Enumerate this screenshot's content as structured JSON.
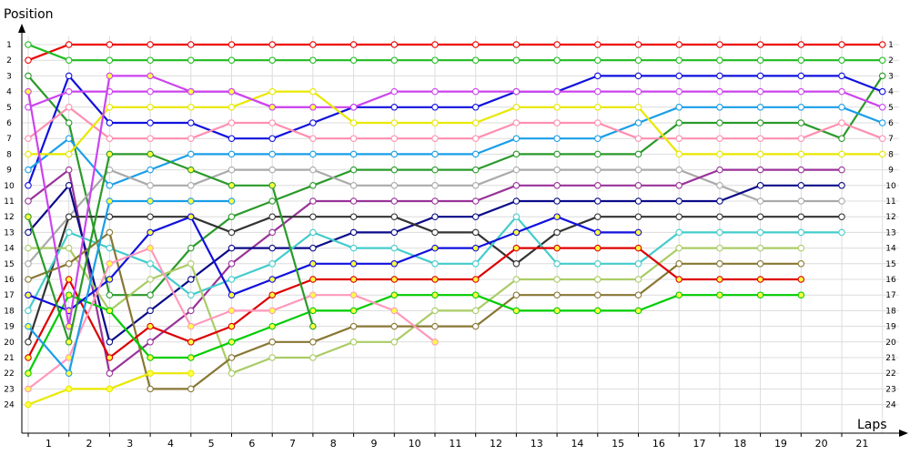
{
  "chart_data": {
    "type": "line",
    "title": "",
    "xlabel": "Laps",
    "ylabel": "Position",
    "x": [
      0,
      1,
      2,
      3,
      4,
      5,
      6,
      7,
      8,
      9,
      10,
      11,
      12,
      13,
      14,
      15,
      16,
      17,
      18,
      19,
      20,
      21
    ],
    "x_tick_labels": [
      "1",
      "2",
      "3",
      "4",
      "5",
      "6",
      "7",
      "8",
      "9",
      "10",
      "11",
      "12",
      "13",
      "14",
      "15",
      "16",
      "17",
      "18",
      "19",
      "20",
      "21"
    ],
    "y_ticks": [
      1,
      2,
      3,
      4,
      5,
      6,
      7,
      8,
      9,
      10,
      11,
      12,
      13,
      14,
      15,
      16,
      17,
      18,
      19,
      20,
      21,
      22,
      23,
      24
    ],
    "ylim": [
      1,
      24
    ],
    "y_inverted": true,
    "grid": true,
    "series": [
      {
        "color": "#ee0000",
        "marker": "#ffffff",
        "values": [
          2,
          1,
          1,
          1,
          1,
          1,
          1,
          1,
          1,
          1,
          1,
          1,
          1,
          1,
          1,
          1,
          1,
          1,
          1,
          1,
          1,
          1
        ]
      },
      {
        "color": "#22bb22",
        "marker": "#ffffff",
        "values": [
          1,
          2,
          2,
          2,
          2,
          2,
          2,
          2,
          2,
          2,
          2,
          2,
          2,
          2,
          2,
          2,
          2,
          2,
          2,
          2,
          2,
          2
        ]
      },
      {
        "color": "#2a9a2a",
        "marker": "#ffffff",
        "values": [
          3,
          6,
          17,
          17,
          14,
          12,
          11,
          10,
          9,
          9,
          9,
          9,
          8,
          8,
          8,
          8,
          6,
          6,
          6,
          6,
          7,
          3
        ]
      },
      {
        "color": "#1111dd",
        "marker": "#ffffff",
        "values": [
          10,
          3,
          6,
          6,
          6,
          7,
          7,
          6,
          5,
          5,
          5,
          5,
          4,
          4,
          3,
          3,
          3,
          3,
          3,
          3,
          3,
          4
        ]
      },
      {
        "color": "#cc44ee",
        "marker": "#ffffff",
        "values": [
          5,
          4,
          4,
          4,
          4,
          4,
          5,
          5,
          5,
          4,
          4,
          4,
          4,
          4,
          4,
          4,
          4,
          4,
          4,
          4,
          4,
          5
        ]
      },
      {
        "color": "#1a9ee8",
        "marker": "#ffffff",
        "values": [
          9,
          7,
          10,
          9,
          8,
          8,
          8,
          8,
          8,
          8,
          8,
          8,
          7,
          7,
          7,
          6,
          5,
          5,
          5,
          5,
          5,
          6
        ]
      },
      {
        "color": "#ff8fb0",
        "marker": "#ffffff",
        "values": [
          7,
          5,
          7,
          7,
          7,
          6,
          6,
          7,
          7,
          7,
          7,
          7,
          6,
          6,
          6,
          7,
          7,
          7,
          7,
          7,
          6,
          7
        ]
      },
      {
        "color": "#e8e800",
        "marker": "#ffffff",
        "values": [
          8,
          8,
          5,
          5,
          5,
          5,
          4,
          4,
          6,
          6,
          6,
          6,
          5,
          5,
          5,
          5,
          8,
          8,
          8,
          8,
          8,
          8
        ]
      },
      {
        "color": "#aaaaaa",
        "marker": "#ffffff",
        "values": [
          15,
          12,
          9,
          10,
          10,
          9,
          9,
          9,
          10,
          10,
          10,
          10,
          9,
          9,
          9,
          9,
          9,
          10,
          11,
          11,
          11,
          null
        ]
      },
      {
        "color": "#993399",
        "marker": "#ffffff",
        "values": [
          11,
          9,
          22,
          20,
          18,
          15,
          13,
          11,
          11,
          11,
          11,
          11,
          10,
          10,
          10,
          10,
          10,
          9,
          9,
          9,
          9,
          null
        ]
      },
      {
        "color": "#0a0a88",
        "marker": "#ffffff",
        "values": [
          13,
          10,
          20,
          18,
          16,
          14,
          14,
          14,
          13,
          13,
          12,
          12,
          11,
          11,
          11,
          11,
          11,
          11,
          10,
          10,
          10,
          null
        ]
      },
      {
        "color": "#333333",
        "marker": "#ffffff",
        "values": [
          20,
          12,
          12,
          12,
          12,
          13,
          12,
          12,
          12,
          12,
          13,
          13,
          15,
          13,
          12,
          12,
          12,
          12,
          12,
          12,
          12,
          null
        ]
      },
      {
        "color": "#44cccc",
        "marker": "#ffffff",
        "values": [
          18,
          13,
          14,
          15,
          17,
          16,
          15,
          13,
          14,
          14,
          15,
          15,
          12,
          15,
          15,
          15,
          13,
          13,
          13,
          13,
          13,
          null
        ]
      },
      {
        "color": "#aacc66",
        "marker": "#ffffff",
        "values": [
          14,
          14,
          18,
          16,
          15,
          22,
          21,
          21,
          20,
          20,
          18,
          18,
          16,
          16,
          16,
          16,
          14,
          14,
          14,
          14,
          null,
          null
        ]
      },
      {
        "color": "#887733",
        "marker": "#ffffff",
        "values": [
          16,
          15,
          13,
          23,
          23,
          21,
          20,
          20,
          19,
          19,
          19,
          19,
          17,
          17,
          17,
          17,
          15,
          15,
          15,
          15,
          null,
          null
        ]
      },
      {
        "color": "#dd0000",
        "marker": "#ffff44",
        "values": [
          21,
          16,
          21,
          19,
          20,
          19,
          17,
          16,
          16,
          16,
          16,
          16,
          14,
          14,
          14,
          14,
          16,
          16,
          16,
          16,
          null,
          null
        ]
      },
      {
        "color": "#00cc00",
        "marker": "#ffff44",
        "values": [
          22,
          17,
          18,
          21,
          21,
          20,
          19,
          18,
          18,
          17,
          17,
          17,
          18,
          18,
          18,
          18,
          17,
          17,
          17,
          17,
          null,
          null
        ]
      },
      {
        "color": "#1111dd",
        "marker": "#ffff44",
        "values": [
          17,
          18,
          16,
          13,
          12,
          17,
          16,
          15,
          15,
          15,
          14,
          14,
          13,
          12,
          13,
          13,
          null,
          null,
          null,
          null,
          null,
          null
        ]
      },
      {
        "color": "#cc44ee",
        "marker": "#ffff44",
        "values": [
          4,
          19,
          3,
          3,
          4,
          4,
          5,
          5,
          null,
          null,
          null,
          null,
          null,
          null,
          null,
          null,
          null,
          null,
          null,
          null,
          null,
          null
        ]
      },
      {
        "color": "#ff99bb",
        "marker": "#ffff44",
        "values": [
          23,
          21,
          15,
          14,
          19,
          18,
          18,
          17,
          17,
          18,
          20,
          null,
          null,
          null,
          null,
          null,
          null,
          null,
          null,
          null,
          null,
          null
        ]
      },
      {
        "color": "#2a9a2a",
        "marker": "#ffff44",
        "values": [
          12,
          20,
          8,
          8,
          9,
          10,
          10,
          19,
          null,
          null,
          null,
          null,
          null,
          null,
          null,
          null,
          null,
          null,
          null,
          null,
          null,
          null
        ]
      },
      {
        "color": "#1a9ee8",
        "marker": "#ffff44",
        "values": [
          19,
          22,
          11,
          11,
          11,
          11,
          null,
          null,
          null,
          null,
          null,
          null,
          null,
          null,
          null,
          null,
          null,
          null,
          null,
          null,
          null,
          null
        ]
      },
      {
        "color": "#e8e800",
        "marker": "#ffff44",
        "values": [
          24,
          23,
          23,
          22,
          22,
          null,
          null,
          null,
          null,
          null,
          null,
          null,
          null,
          null,
          null,
          null,
          null,
          null,
          null,
          null,
          null,
          null
        ]
      }
    ]
  }
}
